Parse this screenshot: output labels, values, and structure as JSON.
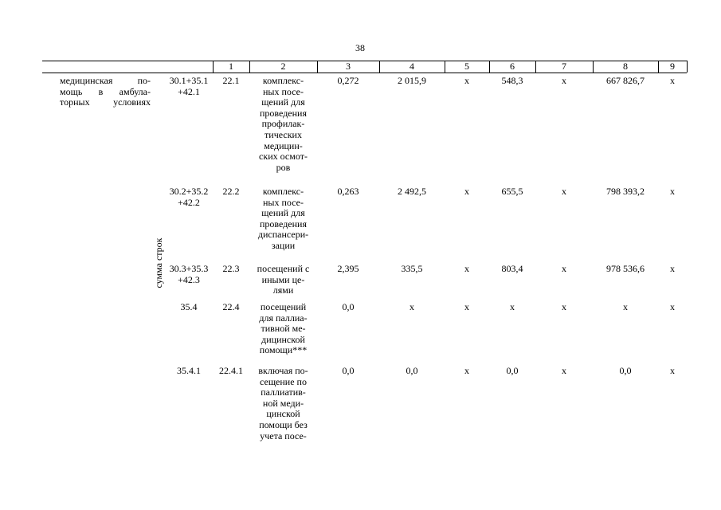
{
  "page_number": "38",
  "header": [
    "1",
    "2",
    "3",
    "4",
    "5",
    "6",
    "7",
    "8",
    "9"
  ],
  "section_label": [
    "медицинская по-",
    "мощь в амбула-",
    "торных условиях"
  ],
  "side_label": "сумма строк",
  "rows": [
    {
      "code": [
        "30.1+35.1",
        "+42.1"
      ],
      "cells": [
        [
          "22.1"
        ],
        [
          "комплекс-",
          "ных посе-",
          "щений для",
          "проведения",
          "профилак-",
          "тических",
          "медицин-",
          "ских осмот-",
          "ров"
        ],
        [
          "0,272"
        ],
        [
          "2 015,9"
        ],
        [
          "х"
        ],
        [
          "548,3"
        ],
        [
          "х"
        ],
        [
          "667 826,7"
        ],
        [
          "х"
        ]
      ]
    },
    {
      "code": [
        "30.2+35.2",
        "+42.2"
      ],
      "cells": [
        [
          "22.2"
        ],
        [
          "комплекс-",
          "ных посе-",
          "щений для",
          "проведения",
          "диспансери-",
          "зации"
        ],
        [
          "0,263"
        ],
        [
          "2 492,5"
        ],
        [
          "х"
        ],
        [
          "655,5"
        ],
        [
          "х"
        ],
        [
          "798 393,2"
        ],
        [
          "х"
        ]
      ]
    },
    {
      "code": [
        "30.3+35.3",
        "+42.3"
      ],
      "cells": [
        [
          "22.3"
        ],
        [
          "посещений с",
          "иными це-",
          "лями"
        ],
        [
          "2,395"
        ],
        [
          "335,5"
        ],
        [
          "х"
        ],
        [
          "803,4"
        ],
        [
          "х"
        ],
        [
          "978 536,6"
        ],
        [
          "х"
        ]
      ]
    },
    {
      "code": [
        "35.4"
      ],
      "cells": [
        [
          "22.4"
        ],
        [
          "посещений",
          "для паллиа-",
          "тивной ме-",
          "дицинской",
          "помощи***"
        ],
        [
          "0,0"
        ],
        [
          "х"
        ],
        [
          "х"
        ],
        [
          "х"
        ],
        [
          "х"
        ],
        [
          "х"
        ],
        [
          "х"
        ]
      ]
    },
    {
      "code": [
        "35.4.1"
      ],
      "cells": [
        [
          "22.4.1"
        ],
        [
          "включая по-",
          "сещение по",
          "паллиатив-",
          "ной меди-",
          "цинской",
          "помощи без",
          "учета посе-"
        ],
        [
          "0,0"
        ],
        [
          "0,0"
        ],
        [
          "х"
        ],
        [
          "0,0"
        ],
        [
          "х"
        ],
        [
          "0,0"
        ],
        [
          "х"
        ]
      ]
    }
  ]
}
